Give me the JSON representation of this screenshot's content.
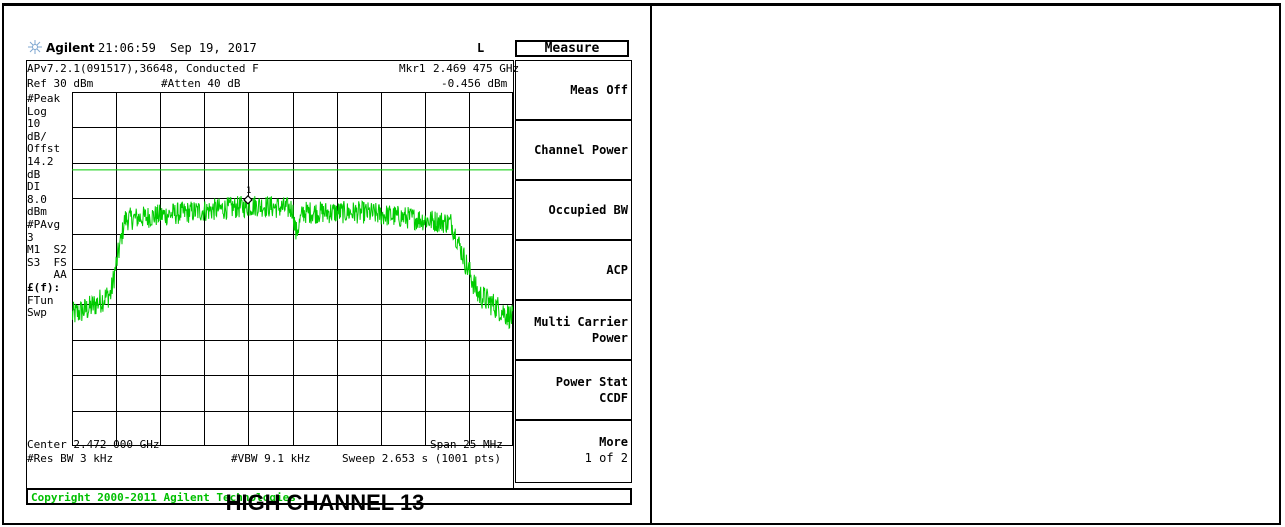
{
  "status_line": {
    "brand": "Agilent",
    "time": "21:06:59",
    "date": "Sep 19, 2017",
    "mode_letter": "L"
  },
  "info": {
    "app_line": "APv7.2.1(091517),36648, Conducted F",
    "marker_label": "Mkr1",
    "marker_freq": "2.469 475 GHz",
    "ref": "Ref 30 dBm",
    "atten": "#Atten 40 dB",
    "marker_level": "-0.456 dBm"
  },
  "left_annotations": [
    "#Peak",
    "Log",
    "10",
    "dB/",
    "Offst",
    "14.2",
    "dB",
    "DI",
    "8.0",
    "dBm",
    "#PAvg",
    "3",
    "M1  S2",
    "S3  FS",
    "    AA",
    "£(f):",
    "FTun",
    "Swp"
  ],
  "bottom": {
    "center": "Center 2.472 000 GHz",
    "span": "Span 25 MHz",
    "res_bw": "#Res BW 3 kHz",
    "vbw": "#VBW 9.1 kHz",
    "sweep": "Sweep 2.653 s (1001 pts)"
  },
  "softkeys": {
    "title": "Measure",
    "keys": [
      {
        "line1": "Meas Off",
        "line2": ""
      },
      {
        "line1": "Channel Power",
        "line2": ""
      },
      {
        "line1": "Occupied BW",
        "line2": ""
      },
      {
        "line1": "ACP",
        "line2": ""
      },
      {
        "line1": "Multi Carrier",
        "line2": "Power"
      },
      {
        "line1": "Power Stat",
        "line2": "CCDF"
      },
      {
        "line1": "More",
        "line2": "1 of 2"
      }
    ]
  },
  "copyright": "Copyright 2000-2011 Agilent Technologies",
  "caption": "HIGH CHANNEL 13",
  "marker_number": "1",
  "colors": {
    "trace": "#00cc00",
    "display_line": "#00cc00",
    "copyright": "#00c000",
    "grid": "#000000"
  },
  "chart_data": {
    "type": "line",
    "x_axis": {
      "center_ghz": 2.472,
      "span_mhz": 25,
      "divisions": 10
    },
    "y_axis": {
      "ref_dbm": 30,
      "scale_db_per_div": 10,
      "divisions": 10
    },
    "display_line_dbm": 8.0,
    "marker": {
      "freq_ghz": 2.469475,
      "level_dbm": -0.456
    },
    "trace_envelope": [
      {
        "x_mhz": -12.5,
        "y_dbm": -33
      },
      {
        "x_mhz": -11.5,
        "y_dbm": -31
      },
      {
        "x_mhz": -10.3,
        "y_dbm": -27
      },
      {
        "x_mhz": -10.0,
        "y_dbm": -19
      },
      {
        "x_mhz": -9.5,
        "y_dbm": -6
      },
      {
        "x_mhz": -6.0,
        "y_dbm": -4
      },
      {
        "x_mhz": -2.0,
        "y_dbm": -2
      },
      {
        "x_mhz": 0.0,
        "y_dbm": -3
      },
      {
        "x_mhz": 0.2,
        "y_dbm": -10
      },
      {
        "x_mhz": 0.6,
        "y_dbm": -4
      },
      {
        "x_mhz": 4.0,
        "y_dbm": -4
      },
      {
        "x_mhz": 9.0,
        "y_dbm": -7
      },
      {
        "x_mhz": 9.8,
        "y_dbm": -18
      },
      {
        "x_mhz": 10.5,
        "y_dbm": -27
      },
      {
        "x_mhz": 12.5,
        "y_dbm": -34
      }
    ]
  }
}
